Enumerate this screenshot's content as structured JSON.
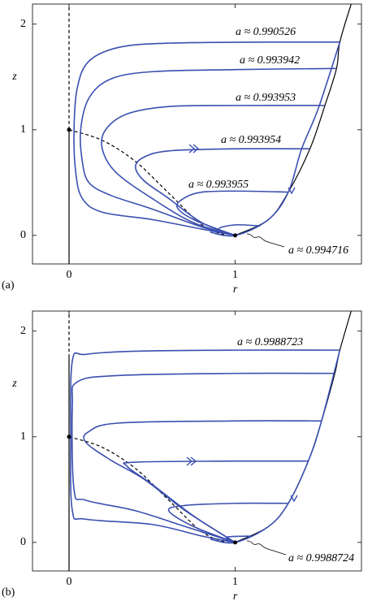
{
  "chart_data": [
    {
      "type": "line",
      "panel_label": "(a)",
      "xlabel": "r",
      "ylabel": "z",
      "xlim": [
        -0.22,
        1.76
      ],
      "ylim": [
        -0.27,
        2.19
      ],
      "xticks": [
        0,
        1
      ],
      "yticks": [
        0,
        1,
        2
      ],
      "series": [
        {
          "color": "#000000",
          "style": "solid",
          "x": [
            0,
            0
          ],
          "values": [
            -0.27,
            1
          ]
        },
        {
          "color": "#000000",
          "style": "dashed",
          "x": [
            0,
            0
          ],
          "values": [
            1,
            2.19
          ]
        },
        {
          "color": "#000000",
          "style": "solid",
          "x": [
            1.0,
            1.2,
            1.32,
            1.45,
            1.54,
            1.61,
            1.63,
            1.7
          ],
          "values": [
            0,
            0.15,
            0.41,
            0.82,
            1.23,
            1.58,
            1.83,
            2.2
          ]
        },
        {
          "color": "#000000",
          "style": "dashed",
          "x": [
            0,
            0.2,
            0.4,
            0.6,
            0.8,
            0.95,
            1.0
          ],
          "values": [
            1,
            0.9,
            0.7,
            0.4,
            0.1,
            0.0,
            0.0
          ]
        },
        {
          "name": "a ≈ 0.990526",
          "color": "#3a4fb0",
          "style": "solid",
          "x": [
            1.63,
            1.2,
            0.6,
            0.3,
            0.12,
            0.05,
            0.03,
            0.04,
            0.08,
            0.2,
            0.5,
            0.8,
            1.0
          ],
          "values": [
            1.83,
            1.83,
            1.82,
            1.78,
            1.65,
            1.4,
            1.0,
            0.6,
            0.35,
            0.22,
            0.15,
            0.06,
            0.0
          ]
        },
        {
          "name": "a ≈ 0.993942",
          "color": "#3a4fb0",
          "style": "solid",
          "x": [
            1.61,
            1.0,
            0.5,
            0.25,
            0.12,
            0.07,
            0.08,
            0.12,
            0.25,
            0.5,
            0.8,
            1.0
          ],
          "values": [
            1.58,
            1.57,
            1.55,
            1.48,
            1.3,
            1.0,
            0.7,
            0.5,
            0.38,
            0.25,
            0.08,
            0.0
          ]
        },
        {
          "name": "a ≈ 0.993953",
          "color": "#3a4fb0",
          "style": "solid",
          "x": [
            1.54,
            1.0,
            0.6,
            0.35,
            0.22,
            0.2,
            0.28,
            0.5,
            0.75,
            1.0
          ],
          "values": [
            1.23,
            1.23,
            1.22,
            1.15,
            1.0,
            0.82,
            0.6,
            0.35,
            0.12,
            0.0
          ]
        },
        {
          "name": "a ≈ 0.993954",
          "color": "#3a4fb0",
          "style": "solid",
          "x": [
            1.45,
            1.0,
            0.6,
            0.45,
            0.4,
            0.45,
            0.6,
            0.8,
            1.0
          ],
          "values": [
            0.82,
            0.82,
            0.8,
            0.74,
            0.65,
            0.52,
            0.35,
            0.12,
            0.0
          ]
        },
        {
          "name": "a ≈ 0.993955",
          "color": "#3a4fb0",
          "style": "solid",
          "x": [
            1.32,
            1.0,
            0.8,
            0.7,
            0.65,
            0.75,
            1.0
          ],
          "values": [
            0.41,
            0.42,
            0.41,
            0.36,
            0.27,
            0.15,
            0.0
          ]
        },
        {
          "name": "a ≈ 0.994716",
          "color": "#3a4fb0",
          "style": "solid",
          "x": [
            1.15,
            1.0,
            0.9,
            1.0
          ],
          "values": [
            0.09,
            0.1,
            0.06,
            0.0
          ]
        },
        {
          "color": "#3a4fb0",
          "style": "solid",
          "x": [
            1.63,
            1.5,
            1.4,
            1.32,
            1.2,
            1.0,
            0.85
          ],
          "values": [
            1.83,
            1.2,
            0.82,
            0.41,
            0.15,
            0.0,
            0.03
          ]
        },
        {
          "color": "#000000",
          "style": "points",
          "x": [
            0,
            1
          ],
          "values": [
            1,
            0
          ]
        }
      ]
    },
    {
      "type": "line",
      "panel_label": "(b)",
      "xlabel": "r",
      "ylabel": "z",
      "xlim": [
        -0.22,
        1.76
      ],
      "ylim": [
        -0.27,
        2.19
      ],
      "xticks": [
        0,
        1
      ],
      "yticks": [
        0,
        1,
        2
      ],
      "series": [
        {
          "color": "#000000",
          "style": "solid",
          "x": [
            0,
            0
          ],
          "values": [
            -0.27,
            1.75
          ]
        },
        {
          "color": "#000000",
          "style": "dashed",
          "x": [
            0,
            0
          ],
          "values": [
            1.75,
            2.19
          ]
        },
        {
          "color": "#000000",
          "style": "solid",
          "x": [
            1.0,
            1.2,
            1.32,
            1.44,
            1.52,
            1.6,
            1.63,
            1.7
          ],
          "values": [
            0,
            0.15,
            0.37,
            0.77,
            1.15,
            1.6,
            1.82,
            2.2
          ]
        },
        {
          "color": "#000000",
          "style": "dashed",
          "x": [
            0,
            0.2,
            0.4,
            0.6,
            0.8,
            0.95,
            1.0
          ],
          "values": [
            1,
            0.9,
            0.7,
            0.4,
            0.1,
            0.0,
            0.0
          ]
        },
        {
          "name": "a ≈ 0.9988723",
          "color": "#3a4fb0",
          "style": "solid",
          "x": [
            1.63,
            1.0,
            0.4,
            0.1,
            0.02,
            0.01,
            0.02,
            0.1,
            0.5,
            0.8,
            1.0
          ],
          "values": [
            1.82,
            1.82,
            1.81,
            1.78,
            1.72,
            1.0,
            0.3,
            0.22,
            0.17,
            0.06,
            0.0
          ]
        },
        {
          "color": "#3a4fb0",
          "style": "solid",
          "x": [
            1.6,
            1.0,
            0.3,
            0.05,
            0.02,
            0.03,
            0.1,
            0.4,
            0.7,
            1.0
          ],
          "values": [
            1.6,
            1.6,
            1.58,
            1.52,
            1.3,
            0.5,
            0.4,
            0.3,
            0.15,
            0.0
          ]
        },
        {
          "color": "#3a4fb0",
          "style": "solid",
          "x": [
            1.52,
            1.0,
            0.3,
            0.12,
            0.1,
            0.25,
            0.45,
            0.7,
            1.0
          ],
          "values": [
            1.15,
            1.15,
            1.13,
            1.05,
            0.95,
            0.78,
            0.6,
            0.3,
            0.0
          ]
        },
        {
          "color": "#3a4fb0",
          "style": "solid",
          "x": [
            1.44,
            1.0,
            0.4,
            0.35,
            0.5,
            0.75,
            1.0
          ],
          "values": [
            0.77,
            0.77,
            0.76,
            0.72,
            0.55,
            0.25,
            0.0
          ]
        },
        {
          "color": "#3a4fb0",
          "style": "solid",
          "x": [
            1.32,
            1.0,
            0.7,
            0.6,
            0.75,
            1.0
          ],
          "values": [
            0.37,
            0.37,
            0.35,
            0.3,
            0.15,
            0.0
          ]
        },
        {
          "name": "a ≈ 0.9988724",
          "color": "#3a4fb0",
          "style": "solid",
          "x": [
            1.1,
            0.95,
            1.0
          ],
          "values": [
            0.06,
            0.05,
            0.0
          ]
        },
        {
          "color": "#3a4fb0",
          "style": "solid",
          "x": [
            1.63,
            1.52,
            1.44,
            1.32,
            1.2,
            1.0,
            0.85
          ],
          "values": [
            1.82,
            1.15,
            0.77,
            0.37,
            0.15,
            0.0,
            0.03
          ]
        },
        {
          "color": "#000000",
          "style": "points",
          "x": [
            0,
            1
          ],
          "values": [
            1,
            0
          ]
        }
      ]
    }
  ]
}
